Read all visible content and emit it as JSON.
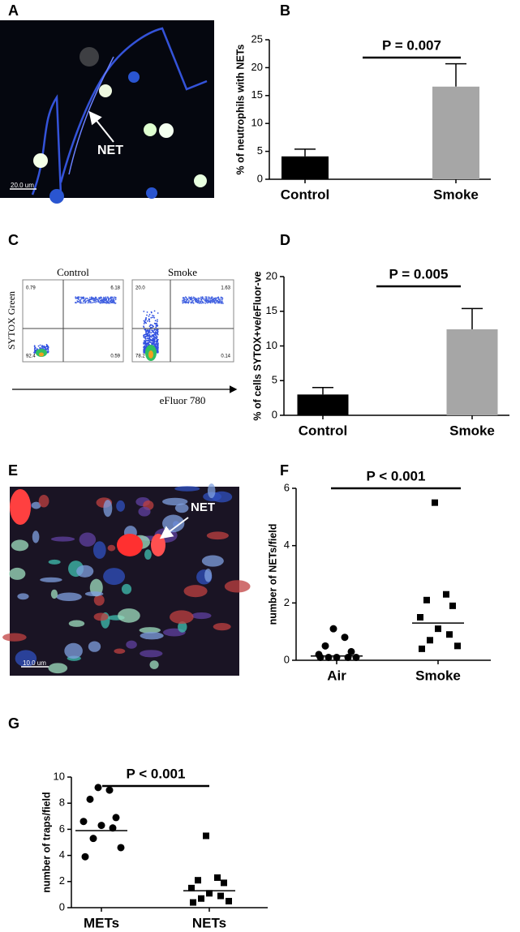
{
  "panel_labels": [
    "A",
    "B",
    "C",
    "D",
    "E",
    "F",
    "G"
  ],
  "image_a": {
    "annotation": "NET",
    "scale_bar": "20.0 um"
  },
  "image_c": {
    "plots": [
      {
        "title": "Control",
        "quadrants": [
          "0.79",
          "6.18",
          "92.4",
          "0.59"
        ]
      },
      {
        "title": "Smoke",
        "quadrants": [
          "20.0",
          "1.63",
          "78.2",
          "0.14"
        ]
      }
    ],
    "y_label": "SYTOX Green",
    "x_label": "eFluor 780"
  },
  "image_e": {
    "annotation": "NET",
    "scale_bar": "10.0 um"
  },
  "chart_data": [
    {
      "type": "bar",
      "categories": [
        "Control",
        "Smoke"
      ],
      "values": [
        4.1,
        16.6
      ],
      "errors": [
        1.3,
        4.1
      ],
      "colors": [
        "#000000",
        "#a6a6a6"
      ],
      "y_label": "% of neutrophils with NETs",
      "annotation": "P = 0.007",
      "ylim": [
        0,
        25
      ],
      "yticks": [
        0,
        5,
        10,
        15,
        20,
        25
      ]
    },
    {
      "type": "bar",
      "categories": [
        "Control",
        "Smoke"
      ],
      "values": [
        3.0,
        12.4
      ],
      "errors": [
        1.0,
        3.0
      ],
      "colors": [
        "#000000",
        "#a6a6a6"
      ],
      "y_label": "% of cells SYTOX+ve/eFluor-ve",
      "annotation": "P = 0.005",
      "ylim": [
        0,
        20
      ],
      "yticks": [
        0,
        5,
        10,
        15,
        20
      ]
    },
    {
      "type": "scatter",
      "categories": [
        "Air",
        "Smoke"
      ],
      "groups": [
        {
          "marker": "circle",
          "values": [
            1.1,
            0.8,
            0.5,
            0.3,
            0.2,
            0.1,
            0.1,
            0.1,
            0.1,
            0.1
          ],
          "center_line": 0.15
        },
        {
          "marker": "square",
          "values": [
            5.5,
            2.3,
            2.1,
            1.9,
            1.5,
            1.1,
            0.9,
            0.7,
            0.5,
            0.4
          ],
          "center_line": 1.3
        }
      ],
      "color": "#000000",
      "y_label": "number of NETs/field",
      "annotation": "P < 0.001",
      "ylim": [
        0,
        6
      ],
      "yticks": [
        0,
        2,
        4,
        6
      ]
    },
    {
      "type": "scatter",
      "categories": [
        "METs",
        "NETs"
      ],
      "groups": [
        {
          "marker": "circle",
          "values": [
            9.2,
            9.0,
            8.3,
            6.9,
            6.6,
            6.3,
            6.1,
            5.3,
            4.6,
            3.9
          ],
          "center_line": 5.9
        },
        {
          "marker": "square",
          "values": [
            5.5,
            2.3,
            2.1,
            1.9,
            1.5,
            1.1,
            0.9,
            0.7,
            0.5,
            0.4
          ],
          "center_line": 1.3
        }
      ],
      "color": "#000000",
      "y_label": "number of traps/field",
      "annotation": "P < 0.001",
      "ylim": [
        0,
        10
      ],
      "yticks": [
        0,
        2,
        4,
        6,
        8,
        10
      ]
    }
  ]
}
